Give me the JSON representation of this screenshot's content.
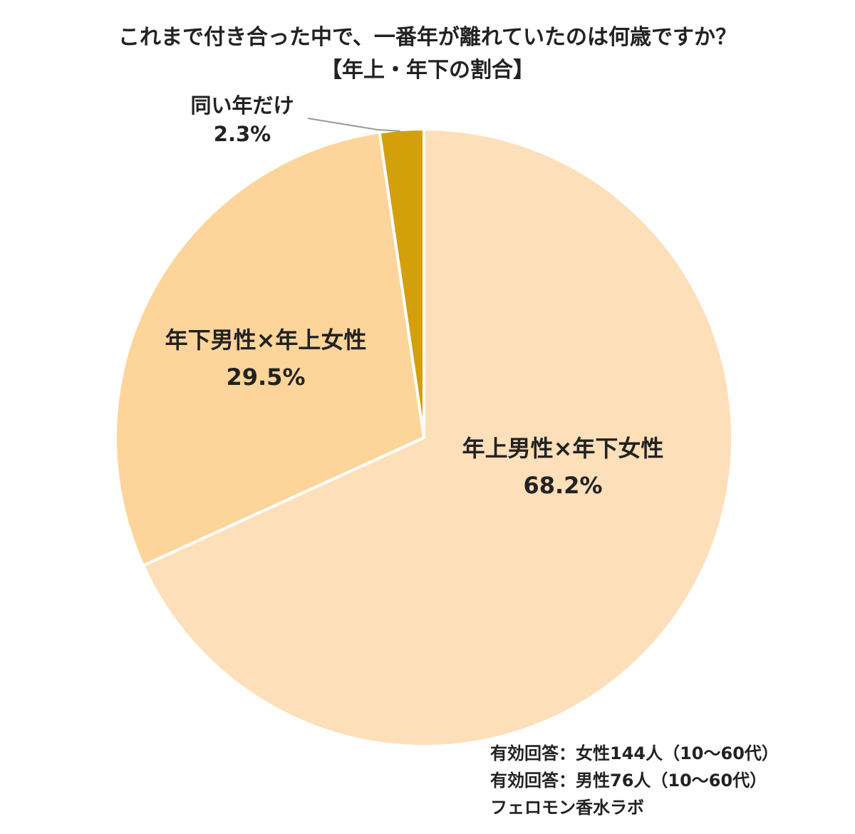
{
  "chart_data": {
    "type": "pie",
    "title": "これまで付き合った中で、一番年が離れていたのは何歳ですか？",
    "subtitle": "【年上・年下の割合】",
    "slices": [
      {
        "label": "年上男性×年下女性",
        "value": 68.2,
        "value_label": "68.2%",
        "color": "#FDDFB9"
      },
      {
        "label": "年下男性×年上女性",
        "value": 29.5,
        "value_label": "29.5%",
        "color": "#FDD59A"
      },
      {
        "label": "同い年だけ",
        "value": 2.3,
        "value_label": "2.3%",
        "color": "#D4A00A"
      }
    ],
    "start_angle": "12 o'clock",
    "direction": "clockwise"
  },
  "footer": {
    "line1": "有効回答：女性144人（10～60代）",
    "line2": "有効回答：男性76人（10～60代）",
    "source": "フェロモン香水ラボ"
  }
}
